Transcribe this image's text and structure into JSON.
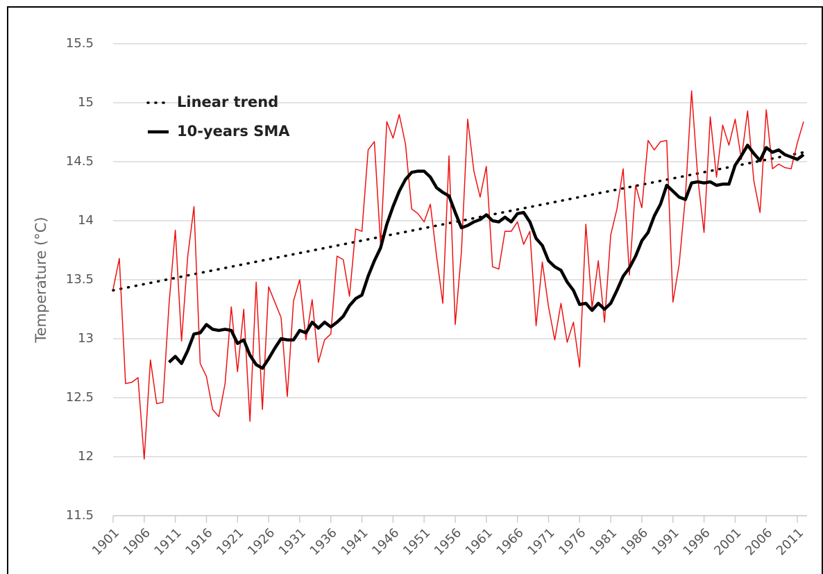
{
  "chart_data": {
    "type": "line",
    "y_label": "Temperature (°C)",
    "x": [
      1901,
      1902,
      1903,
      1904,
      1905,
      1906,
      1907,
      1908,
      1909,
      1910,
      1911,
      1912,
      1913,
      1914,
      1915,
      1916,
      1917,
      1918,
      1919,
      1920,
      1921,
      1922,
      1923,
      1924,
      1925,
      1926,
      1927,
      1928,
      1929,
      1930,
      1931,
      1932,
      1933,
      1934,
      1935,
      1936,
      1937,
      1938,
      1939,
      1940,
      1941,
      1942,
      1943,
      1944,
      1945,
      1946,
      1947,
      1948,
      1949,
      1950,
      1951,
      1952,
      1953,
      1954,
      1955,
      1956,
      1957,
      1958,
      1959,
      1960,
      1961,
      1962,
      1963,
      1964,
      1965,
      1966,
      1967,
      1968,
      1969,
      1970,
      1971,
      1972,
      1973,
      1974,
      1975,
      1976,
      1977,
      1978,
      1979,
      1980,
      1981,
      1982,
      1983,
      1984,
      1985,
      1986,
      1987,
      1988,
      1989,
      1990,
      1991,
      1992,
      1993,
      1994,
      1995,
      1996,
      1997,
      1998,
      1999,
      2000,
      2001,
      2002,
      2003,
      2004,
      2005,
      2006,
      2007,
      2008,
      2009,
      2010,
      2011,
      2012
    ],
    "series": [
      {
        "color": "#ee1111",
        "width": 1.5,
        "values": [
          13.42,
          13.68,
          12.62,
          12.63,
          12.67,
          11.98,
          12.82,
          12.45,
          12.46,
          13.3,
          13.92,
          12.98,
          13.7,
          14.12,
          12.79,
          12.68,
          12.4,
          12.34,
          12.62,
          13.27,
          12.72,
          13.25,
          12.3,
          13.48,
          12.4,
          13.44,
          13.31,
          13.18,
          12.51,
          13.32,
          13.5,
          12.99,
          13.33,
          12.8,
          12.99,
          13.04,
          13.7,
          13.67,
          13.36,
          13.93,
          13.91,
          14.6,
          14.67,
          13.8,
          14.84,
          14.7,
          14.9,
          14.65,
          14.1,
          14.06,
          13.99,
          14.14,
          13.7,
          13.3,
          14.55,
          13.12,
          13.74,
          14.86,
          14.42,
          14.2,
          14.46,
          13.61,
          13.59,
          13.91,
          13.91,
          13.99,
          13.8,
          13.91,
          13.11,
          13.65,
          13.27,
          12.99,
          13.3,
          12.97,
          13.14,
          12.76,
          13.97,
          13.26,
          13.66,
          13.14,
          13.88,
          14.1,
          14.44,
          13.54,
          14.3,
          14.11,
          14.68,
          14.6,
          14.67,
          14.68,
          13.31,
          13.63,
          14.2,
          15.1,
          14.36,
          13.9,
          14.88,
          14.37,
          14.81,
          14.64,
          14.86,
          14.52,
          14.93,
          14.34,
          14.07,
          14.94,
          14.44,
          14.48,
          14.45,
          14.44,
          14.66,
          14.84
        ]
      },
      {
        "name": "10-years SMA",
        "color": "#000000",
        "width": 4.5,
        "values": [
          null,
          null,
          null,
          null,
          null,
          null,
          null,
          null,
          null,
          12.8,
          12.85,
          12.79,
          12.9,
          13.04,
          13.05,
          13.12,
          13.08,
          13.07,
          13.08,
          13.07,
          12.96,
          12.99,
          12.86,
          12.78,
          12.75,
          12.83,
          12.92,
          13.0,
          12.99,
          12.99,
          13.07,
          13.05,
          13.14,
          13.09,
          13.14,
          13.1,
          13.14,
          13.19,
          13.28,
          13.34,
          13.37,
          13.53,
          13.66,
          13.77,
          13.97,
          14.12,
          14.25,
          14.35,
          14.41,
          14.42,
          14.42,
          14.37,
          14.28,
          14.24,
          14.21,
          14.07,
          13.94,
          13.96,
          13.99,
          14.01,
          14.05,
          14.0,
          13.99,
          14.03,
          13.99,
          14.06,
          14.07,
          13.99,
          13.85,
          13.79,
          13.66,
          13.61,
          13.58,
          13.48,
          13.41,
          13.29,
          13.3,
          13.24,
          13.3,
          13.25,
          13.3,
          13.41,
          13.53,
          13.6,
          13.7,
          13.83,
          13.9,
          14.04,
          14.14,
          14.3,
          14.25,
          14.2,
          14.18,
          14.32,
          14.33,
          14.32,
          14.33,
          14.3,
          14.31,
          14.31,
          14.47,
          14.55,
          14.64,
          14.57,
          14.51,
          14.62,
          14.58,
          14.6,
          14.56,
          14.54,
          14.52,
          14.56
        ]
      }
    ],
    "trend": {
      "name": "Linear trend",
      "color": "#000000",
      "x": [
        1901,
        2012
      ],
      "values": [
        13.41,
        14.58
      ]
    },
    "xlim": [
      1901,
      2012
    ],
    "xticks": [
      1901,
      1906,
      1911,
      1916,
      1921,
      1926,
      1931,
      1936,
      1941,
      1946,
      1951,
      1956,
      1961,
      1966,
      1971,
      1976,
      1981,
      1986,
      1991,
      1996,
      2001,
      2006,
      2011
    ],
    "ylim": [
      11.5,
      15.5
    ],
    "yticks": [
      11.5,
      12,
      12.5,
      13,
      13.5,
      14,
      14.5,
      15,
      15.5
    ],
    "grid": true,
    "legend": "top-left"
  }
}
